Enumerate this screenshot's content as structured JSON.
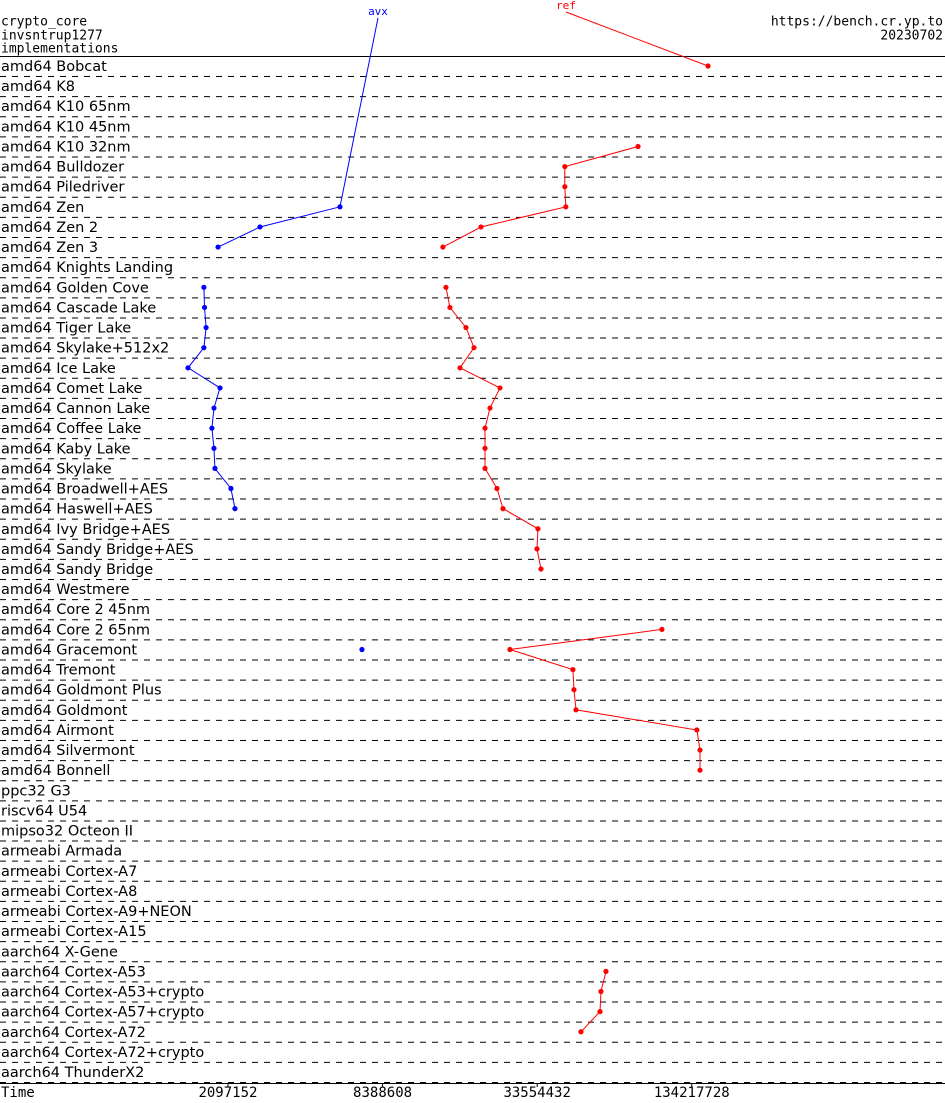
{
  "chart_data": {
    "type": "line",
    "title": "crypto_core",
    "subtitle": "invsntrup1277",
    "y_label": "implementations",
    "source": "https://bench.cr.yp.to",
    "date": "20230702",
    "x_label": "Time",
    "x_scale": "log",
    "xlim": [
      271600,
      1300000000
    ],
    "xticks": [
      2097152,
      8388608,
      33554432,
      134217728
    ],
    "categories": [
      "amd64 Bobcat",
      "amd64 K8",
      "amd64 K10 65nm",
      "amd64 K10 45nm",
      "amd64 K10 32nm",
      "amd64 Bulldozer",
      "amd64 Piledriver",
      "amd64 Zen",
      "amd64 Zen 2",
      "amd64 Zen 3",
      "amd64 Knights Landing",
      "amd64 Golden Cove",
      "amd64 Cascade Lake",
      "amd64 Tiger Lake",
      "amd64 Skylake+512x2",
      "amd64 Ice Lake",
      "amd64 Comet Lake",
      "amd64 Cannon Lake",
      "amd64 Coffee Lake",
      "amd64 Kaby Lake",
      "amd64 Skylake",
      "amd64 Broadwell+AES",
      "amd64 Haswell+AES",
      "amd64 Ivy Bridge+AES",
      "amd64 Sandy Bridge+AES",
      "amd64 Sandy Bridge",
      "amd64 Westmere",
      "amd64 Core 2 45nm",
      "amd64 Core 2 65nm",
      "amd64 Gracemont",
      "amd64 Tremont",
      "amd64 Goldmont Plus",
      "amd64 Goldmont",
      "amd64 Airmont",
      "amd64 Silvermont",
      "amd64 Bonnell",
      "ppc32 G3",
      "riscv64 U54",
      "mipso32 Octeon II",
      "armeabi Armada",
      "armeabi Cortex-A7",
      "armeabi Cortex-A8",
      "armeabi Cortex-A9+NEON",
      "armeabi Cortex-A15",
      "aarch64 X-Gene",
      "aarch64 Cortex-A53",
      "aarch64 Cortex-A53+crypto",
      "aarch64 Cortex-A57+crypto",
      "aarch64 Cortex-A72",
      "aarch64 Cortex-A72+crypto",
      "aarch64 ThunderX2"
    ],
    "series": [
      {
        "name": "avx",
        "color": "#0000ff",
        "values": [
          null,
          null,
          null,
          null,
          null,
          null,
          null,
          5725000,
          2794000,
          1919000,
          null,
          1690000,
          1700000,
          1724000,
          1690000,
          1466000,
          1953000,
          1850000,
          1816000,
          1850000,
          1866000,
          2154000,
          2233000,
          null,
          null,
          null,
          null,
          null,
          null,
          6973000,
          null,
          null,
          null,
          null,
          null,
          null,
          null,
          null,
          null,
          null,
          null,
          null,
          null,
          null,
          null,
          null,
          null,
          null,
          null,
          null,
          null
        ]
      },
      {
        "name": "ref",
        "color": "#ff0000",
        "values": [
          155300000,
          null,
          null,
          null,
          82900000,
          43000000,
          43000000,
          43400000,
          20280000,
          14410000,
          null,
          14810000,
          15350000,
          17720000,
          19040000,
          16800000,
          24040000,
          21980000,
          21020000,
          21020000,
          21020000,
          23400000,
          24700000,
          33790000,
          33500000,
          34730000,
          null,
          null,
          102700000,
          26290000,
          46240000,
          46670000,
          47520000,
          140500000,
          144500000,
          144500000,
          null,
          null,
          null,
          null,
          null,
          null,
          null,
          null,
          null,
          62180000,
          59460000,
          58930000,
          49700000,
          null,
          null
        ]
      }
    ]
  }
}
